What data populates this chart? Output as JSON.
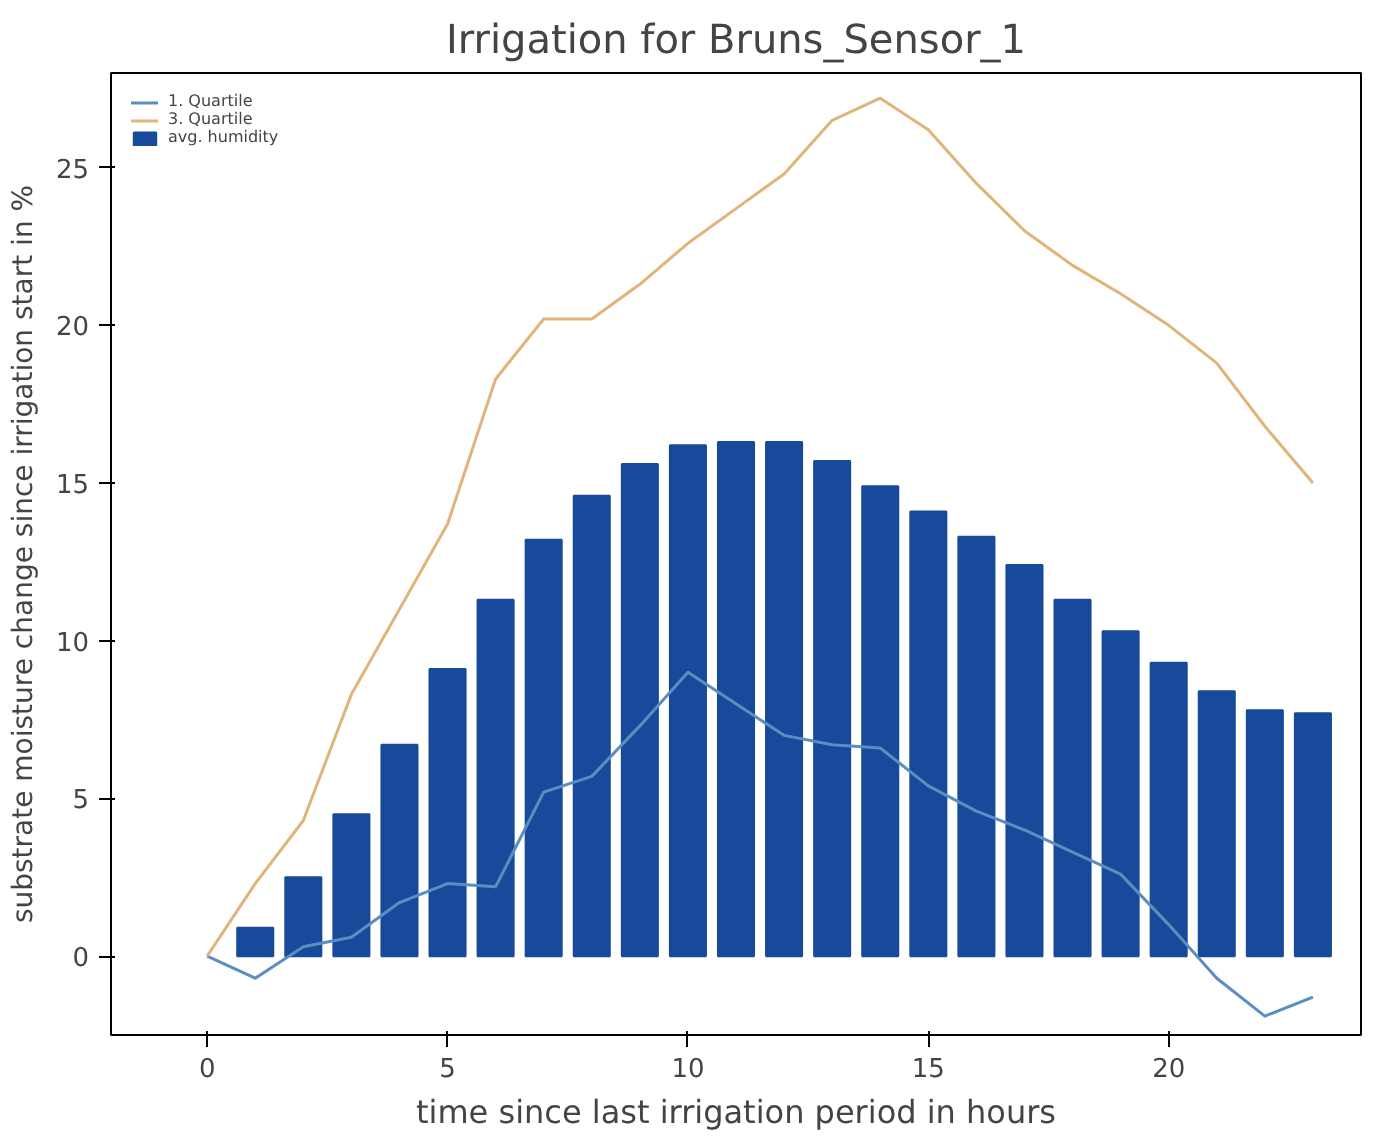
{
  "chart_data": {
    "type": "bar",
    "title": "Irrigation for Bruns_Sensor_1",
    "xlabel": "time since last irrigation period in hours",
    "ylabel": "substrate moisture change since irrigation start in %",
    "xlim": [
      -2,
      24
    ],
    "xticks": [
      0,
      5,
      10,
      15,
      20
    ],
    "ylim": [
      -2.5,
      28
    ],
    "yticks": [
      0,
      5,
      10,
      15,
      20,
      25
    ],
    "grid": false,
    "legend": "top left",
    "series": [
      {
        "name": "1. Quartile",
        "type": "line",
        "color": "#5b8ec0",
        "x": [
          0,
          1,
          2,
          3,
          4,
          5,
          6,
          7,
          8,
          9,
          10,
          11,
          12,
          13,
          14,
          15,
          16,
          17,
          18,
          19,
          20,
          21,
          22,
          23
        ],
        "values": [
          0,
          -0.7,
          0.3,
          0.6,
          1.7,
          2.3,
          2.2,
          5.2,
          5.7,
          7.3,
          9.0,
          8.0,
          7.0,
          6.7,
          6.6,
          5.4,
          4.6,
          4.0,
          3.3,
          2.6,
          1.0,
          -0.7,
          -1.9,
          -1.3
        ]
      },
      {
        "name": "3. Quartile",
        "type": "line",
        "color": "#e0b47a",
        "x": [
          0,
          1,
          2,
          3,
          4,
          5,
          6,
          7,
          8,
          9,
          10,
          11,
          12,
          13,
          14,
          15,
          16,
          17,
          18,
          19,
          20,
          21,
          22,
          23
        ],
        "values": [
          0,
          2.3,
          4.3,
          8.3,
          11.0,
          13.7,
          18.3,
          20.2,
          20.2,
          21.3,
          22.6,
          23.7,
          24.8,
          26.5,
          27.2,
          26.2,
          24.5,
          23.0,
          21.9,
          21.0,
          20.0,
          18.8,
          16.8,
          15.0
        ]
      },
      {
        "name": "avg. humidity",
        "color": "#174a9a",
        "x": [
          1,
          2,
          3,
          4,
          5,
          6,
          7,
          8,
          9,
          10,
          11,
          12,
          13,
          14,
          15,
          16,
          17,
          18,
          19,
          20,
          21,
          22,
          23
        ],
        "values": [
          0.9,
          2.5,
          4.5,
          6.7,
          9.1,
          11.3,
          13.2,
          14.6,
          15.6,
          16.2,
          16.3,
          16.3,
          15.7,
          14.9,
          14.1,
          13.3,
          12.4,
          11.3,
          10.3,
          9.3,
          8.4,
          7.8,
          7.7
        ]
      }
    ]
  }
}
